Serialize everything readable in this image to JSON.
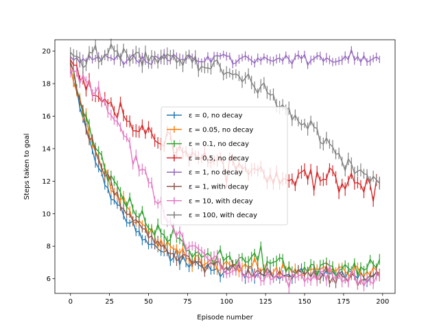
{
  "chart_data": {
    "type": "line",
    "title": "",
    "xlabel": "Episode number",
    "ylabel": "Steps taken to goal",
    "xlim": [
      -10,
      208
    ],
    "ylim": [
      5.1,
      20.7
    ],
    "xticks": [
      0,
      25,
      50,
      75,
      100,
      125,
      150,
      175,
      200
    ],
    "yticks": [
      6,
      8,
      10,
      12,
      14,
      16,
      18,
      20
    ],
    "grid": false,
    "error_bars": true,
    "legend_position": "center",
    "series": [
      {
        "name": "ε = 0, no decay",
        "color": "#1f77b4",
        "model": {
          "start": 19.0,
          "end": 6.2,
          "tau": 28,
          "sigmoid": false,
          "noise": 0.25,
          "err": 0.28
        }
      },
      {
        "name": "ε = 0.05, no decay",
        "color": "#ff7f0e",
        "model": {
          "start": 19.1,
          "end": 6.4,
          "tau": 30,
          "sigmoid": false,
          "noise": 0.25,
          "err": 0.28
        }
      },
      {
        "name": "ε = 0.1, no decay",
        "color": "#2ca02c",
        "model": {
          "start": 19.2,
          "end": 6.7,
          "tau": 32,
          "sigmoid": false,
          "noise": 0.28,
          "err": 0.3
        }
      },
      {
        "name": "ε = 0.5, no decay",
        "color": "#d62728",
        "model": {
          "start": 19.4,
          "end": 11.6,
          "tau": 60,
          "sigmoid": false,
          "noise": 0.35,
          "err": 0.35
        }
      },
      {
        "name": "ε = 1, no decay",
        "color": "#9467bd",
        "model": {
          "start": 19.5,
          "end": 19.5,
          "tau": 100,
          "sigmoid": false,
          "noise": 0.18,
          "err": 0.25
        }
      },
      {
        "name": "ε = 1, with decay",
        "color": "#8c564b",
        "model": {
          "start": 19.3,
          "end": 6.1,
          "tau": 30,
          "sigmoid": false,
          "noise": 0.25,
          "err": 0.28
        }
      },
      {
        "name": "ε = 10, with decay",
        "color": "#e377c2",
        "model": {
          "start": 19.8,
          "end": 6.0,
          "tau": 18,
          "sigmoid": true,
          "mid": 45,
          "noise": 0.3,
          "err": 0.3
        }
      },
      {
        "name": "ε = 100, with decay",
        "color": "#7f7f7f",
        "model": {
          "start": 19.7,
          "end": 11.0,
          "tau": 25,
          "sigmoid": true,
          "mid": 150,
          "noise": 0.3,
          "err": 0.35
        }
      }
    ]
  }
}
